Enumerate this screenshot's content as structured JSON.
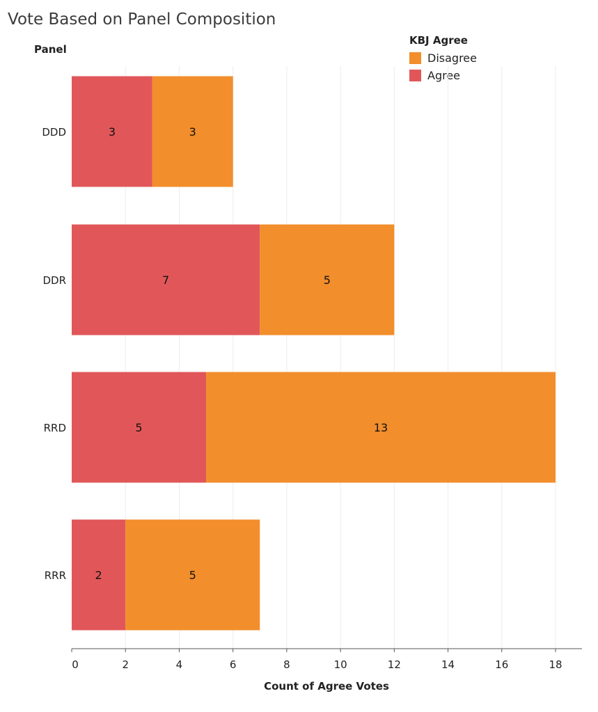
{
  "title": "Vote Based on Panel Composition",
  "panel_header": "Panel",
  "legend": {
    "title": "KBJ Agree",
    "items": [
      {
        "label": "Disagree",
        "color": "#f28e2b"
      },
      {
        "label": "Agree",
        "color": "#e15759"
      }
    ]
  },
  "chart_data": {
    "type": "bar",
    "orientation": "horizontal",
    "stacked": true,
    "title": "Vote Based on Panel Composition",
    "xlabel": "Count of Agree Votes",
    "ylabel": "Panel",
    "categories": [
      "DDD",
      "DDR",
      "RRD",
      "RRR"
    ],
    "series": [
      {
        "name": "Agree",
        "color": "#e15759",
        "values": [
          3,
          7,
          5,
          2
        ]
      },
      {
        "name": "Disagree",
        "color": "#f28e2b",
        "values": [
          3,
          5,
          13,
          5
        ]
      }
    ],
    "xlim": [
      0,
      19
    ],
    "xticks": [
      0,
      2,
      4,
      6,
      8,
      10,
      12,
      14,
      16,
      18
    ],
    "grid": true,
    "legend_position": "top-right"
  }
}
